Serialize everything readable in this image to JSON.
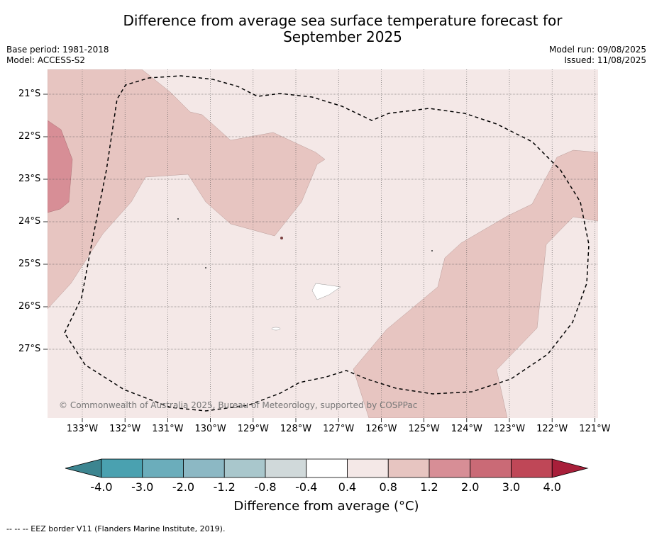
{
  "title_line1": "Difference from average sea surface temperature forecast for",
  "title_line2": "September 2025",
  "base_period": "Base period: 1981-2018",
  "model": "Model: ACCESS-S2",
  "model_run": "Model run: 09/08/2025",
  "issued": "Issued: 11/08/2025",
  "credit": "© Commonwealth of Australia 2025, Bureau of Meteorology, supported by COSPPac",
  "colorbar_label": "Difference from average (°C)",
  "footer_text": "--  --  -- EEZ border V11 (Flanders Marine Institute, 2019).",
  "lat_labels": [
    "21°S",
    "22°S",
    "23°S",
    "24°S",
    "25°S",
    "26°S",
    "27°S"
  ],
  "lon_labels": [
    "133°W",
    "132°W",
    "131°W",
    "130°W",
    "129°W",
    "128°W",
    "127°W",
    "126°W",
    "125°W",
    "124°W",
    "123°W",
    "122°W",
    "121°W"
  ],
  "colorbar": {
    "ticks": [
      "-4.0",
      "-3.0",
      "-2.0",
      "-1.2",
      "-0.8",
      "-0.4",
      "0.4",
      "0.8",
      "1.2",
      "2.0",
      "3.0",
      "4.0"
    ],
    "colors": [
      "#3c8590",
      "#4aa1b0",
      "#6badbb",
      "#8cb8c4",
      "#a9c7cc",
      "#d0d9da",
      "#ffffff",
      "#f4e8e7",
      "#e7c5c1",
      "#d78e96",
      "#ca6a76",
      "#bf4757",
      "#a81f3a"
    ]
  },
  "map_colors": {
    "band_0.4_0.8": "#f4e8e7",
    "band_0.8_1.2": "#e7c5c1",
    "band_1.2_2.0": "#d78e96",
    "band_neg0.4_0.4": "#ffffff"
  }
}
